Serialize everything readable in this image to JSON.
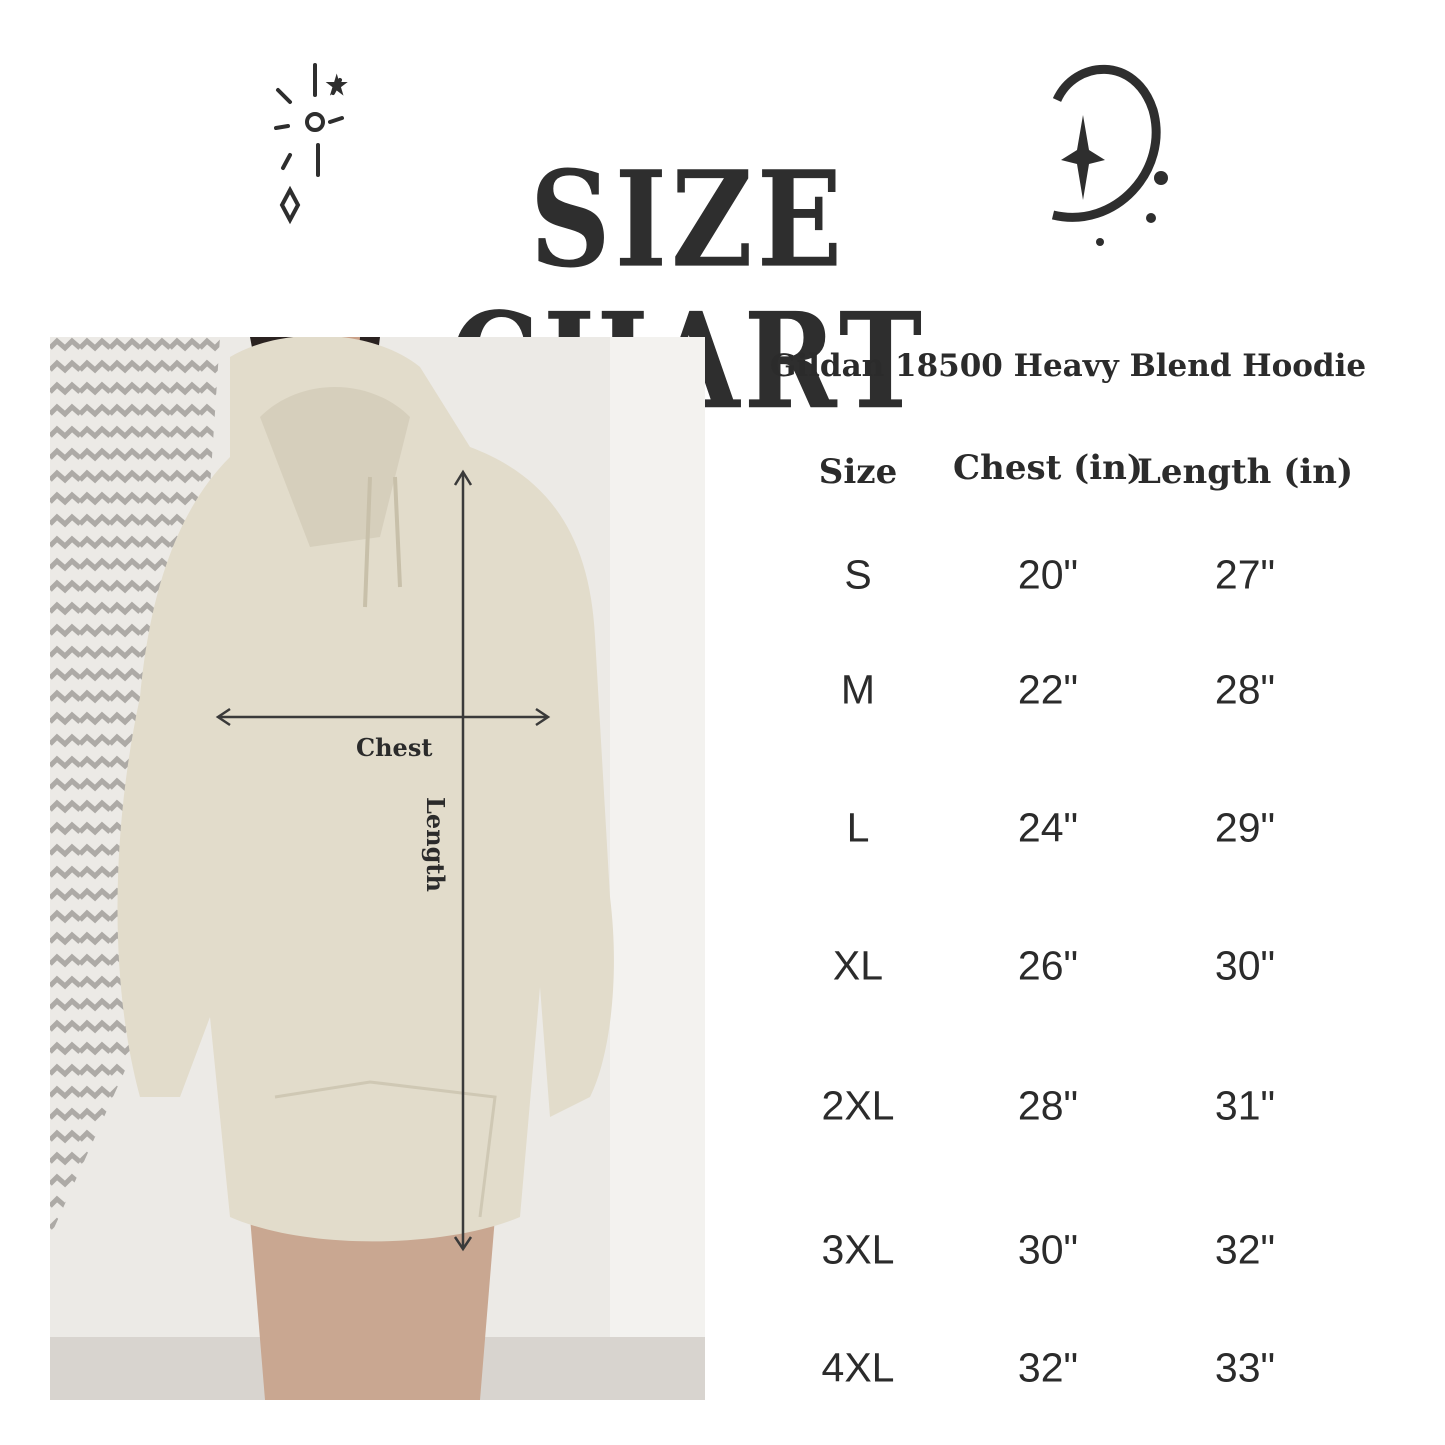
{
  "header": {
    "title": "SIZE CHART"
  },
  "photo": {
    "chest_label": "Chest",
    "length_label": "Length"
  },
  "table": {
    "product": "Gildan 18500 Heavy Blend Hoodie",
    "columns": [
      "Size",
      "Chest (in)",
      "Length (in)"
    ],
    "rows": [
      [
        "S",
        "20\"",
        "27\""
      ],
      [
        "M",
        "22\"",
        "28\""
      ],
      [
        "L",
        "24\"",
        "29\""
      ],
      [
        "XL",
        "26\"",
        "30\""
      ],
      [
        "2XL",
        "28\"",
        "31\""
      ],
      [
        "3XL",
        "30\"",
        "32\""
      ],
      [
        "4XL",
        "32\"",
        "33\""
      ]
    ]
  },
  "colors": {
    "text": "#2b2b2b",
    "hoodie": "#e2dccb",
    "background": "#ffffff"
  }
}
